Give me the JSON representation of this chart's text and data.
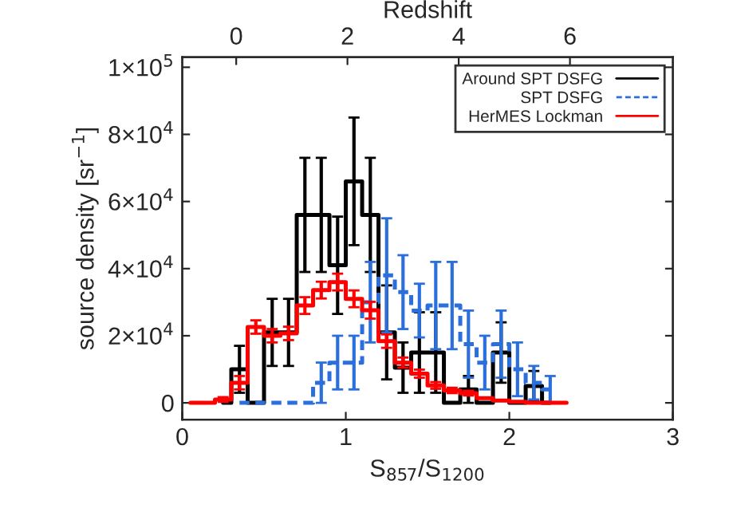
{
  "chart_data": {
    "type": "step",
    "xlabel": "S$_{857}$/S$_{1200}$",
    "ylabel": "source density [sr$^{−1}$]",
    "x2label": "Redshift",
    "series": [
      {
        "name": "Around SPT DSFG",
        "color": "#000000",
        "line_style": "solid",
        "x": [
          0.25,
          0.35,
          0.45,
          0.55,
          0.65,
          0.75,
          0.85,
          0.95,
          1.05,
          1.15,
          1.25,
          1.35,
          1.45,
          1.55,
          1.65,
          1.75,
          1.85,
          1.95,
          2.05,
          2.15,
          2.25
        ],
        "values": [
          0,
          10000,
          0,
          21000,
          21000,
          56000,
          56000,
          41000,
          66000,
          56000,
          21000,
          10500,
          15000,
          15000,
          0,
          4000,
          0,
          15000,
          0,
          5000,
          0
        ],
        "errors": [
          null,
          7000,
          null,
          10000,
          10000,
          17000,
          17000,
          14500,
          19000,
          17000,
          14000,
          7500,
          12000,
          12000,
          null,
          4000,
          null,
          9000,
          null,
          4500,
          null
        ]
      },
      {
        "name": "SPT DSFG",
        "color": "#2a6fdb",
        "line_style": "dashed",
        "x": [
          0.35,
          0.45,
          0.55,
          0.65,
          0.75,
          0.85,
          0.95,
          1.05,
          1.15,
          1.25,
          1.35,
          1.45,
          1.55,
          1.65,
          1.75,
          1.85,
          1.95,
          2.05,
          2.15,
          2.25
        ],
        "values": [
          0,
          0,
          0,
          0,
          0,
          6000,
          12000,
          12000,
          30000,
          38000,
          33000,
          27500,
          29000,
          29000,
          17500,
          12000,
          17500,
          10000,
          6000,
          4000
        ],
        "errors": [
          null,
          null,
          null,
          null,
          null,
          6000,
          8000,
          8000,
          12000,
          17000,
          11000,
          8000,
          13000,
          13000,
          10000,
          8000,
          10000,
          8000,
          5000,
          4000
        ]
      },
      {
        "name": "HerMES Lockman",
        "color": "#ff0000",
        "line_style": "solid",
        "x": [
          0.05,
          0.15,
          0.25,
          0.35,
          0.45,
          0.55,
          0.65,
          0.75,
          0.85,
          0.95,
          1.05,
          1.15,
          1.25,
          1.35,
          1.45,
          1.55,
          1.65,
          1.75,
          1.85,
          1.95,
          2.05,
          2.15,
          2.25,
          2.35
        ],
        "values": [
          0,
          0,
          1000,
          6000,
          22600,
          20000,
          20700,
          29000,
          33600,
          36000,
          31000,
          27600,
          18400,
          12000,
          8700,
          5200,
          3700,
          2900,
          1400,
          700,
          300,
          0,
          0,
          0
        ],
        "errors": [
          null,
          null,
          700,
          2000,
          2000,
          2000,
          2000,
          2500,
          2500,
          2500,
          2500,
          2500,
          2000,
          1500,
          1200,
          1000,
          800,
          700,
          null,
          null,
          null,
          null,
          null,
          null
        ]
      }
    ],
    "xlim": [
      0,
      3
    ],
    "xticks": [
      0,
      1,
      2,
      3
    ],
    "ylim": [
      -5000,
      103000
    ],
    "yticks": [
      {
        "value": 0,
        "label": "0"
      },
      {
        "value": 20000,
        "label": "2×10$^{4}$"
      },
      {
        "value": 40000,
        "label": "4×10$^{4}$"
      },
      {
        "value": 60000,
        "label": "6×10$^{4}$"
      },
      {
        "value": 80000,
        "label": "8×10$^{4}$"
      },
      {
        "value": 100000,
        "label": "1×10$^{5}$"
      }
    ],
    "x2lim": [
      -0.97,
      7.85
    ],
    "x2ticks": [
      0,
      2,
      4,
      6
    ],
    "legend": "top right",
    "grid": false
  }
}
